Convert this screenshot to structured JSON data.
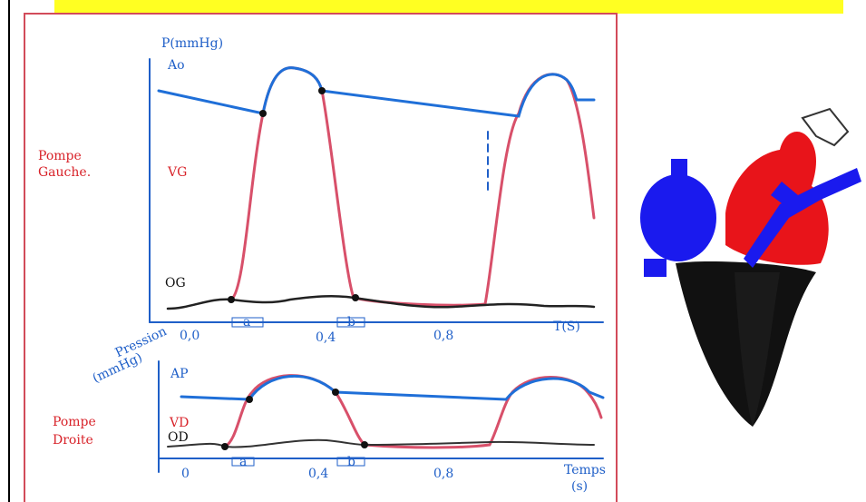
{
  "top_chart": {
    "y_label": "P(mmHg)",
    "curve_labels": {
      "aorta": "Ao",
      "ventricle": "VG",
      "atrium": "OG"
    },
    "side_label": [
      "Pompe",
      "Gauche."
    ],
    "x_ticks": [
      "0,0",
      "0,4",
      "0,8"
    ],
    "x_label": "T(S)",
    "phase_labels": [
      "a",
      "b"
    ]
  },
  "bottom_chart": {
    "y_label": [
      "Pression",
      "(mmHg)"
    ],
    "curve_labels": {
      "artery": "AP",
      "ventricle": "VD",
      "atrium": "OD"
    },
    "side_label": [
      "Pompe",
      "Droite"
    ],
    "x_ticks": [
      "0",
      "0,4",
      "0,8"
    ],
    "x_label": [
      "Temps",
      "(s)"
    ],
    "phase_labels": [
      "a",
      "b"
    ]
  }
}
